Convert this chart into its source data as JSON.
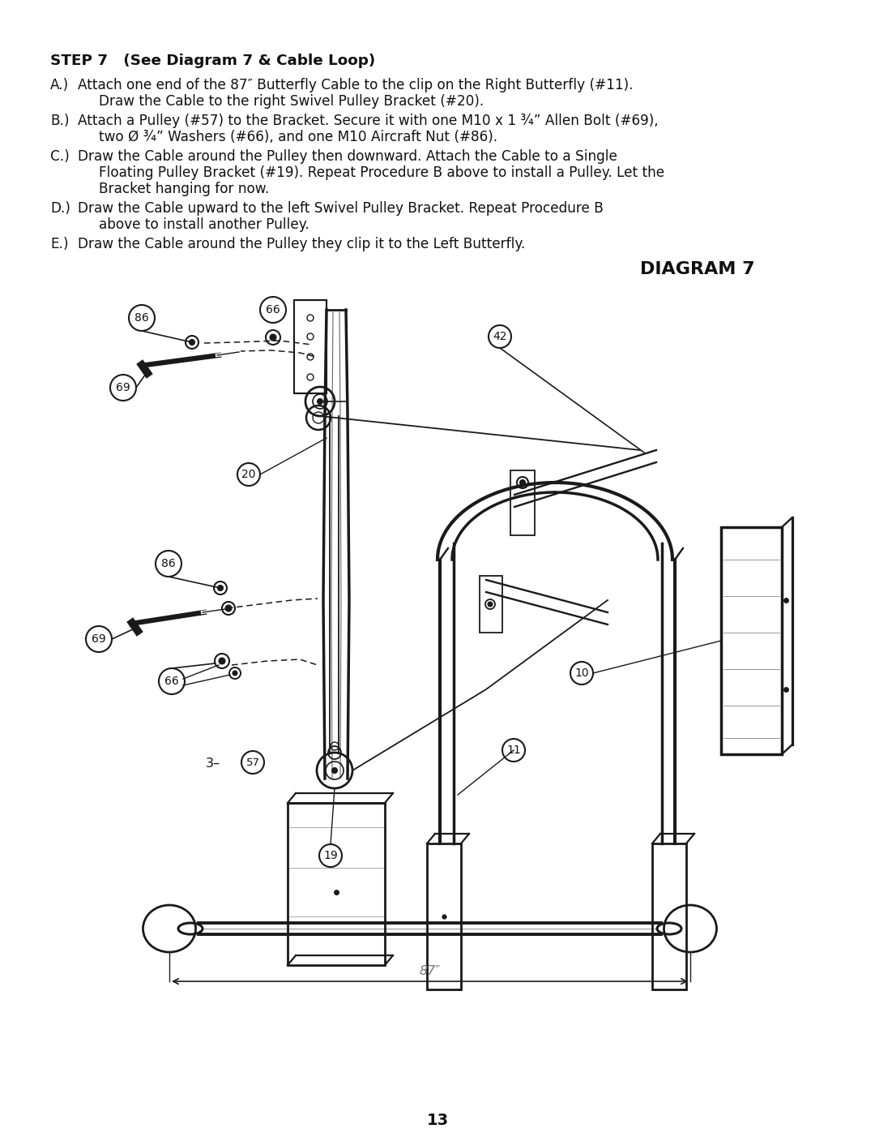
{
  "page_bg": "#ffffff",
  "title_bold": "STEP 7   (See Diagram 7 & Cable Loop)",
  "instr_A1": "Attach one end of the 87″ Butterfly Cable to the clip on the Right Butterfly (#11).",
  "instr_A2": "Draw the Cable to the right Swivel Pulley Bracket (#20).",
  "instr_B1": "Attach a Pulley (#57) to the Bracket. Secure it with one M10 x 1 ¾” Allen Bolt (#69),",
  "instr_B2": "two Ø ¾” Washers (#66), and one M10 Aircraft Nut (#86).",
  "instr_C1": "Draw the Cable around the Pulley then downward. Attach the Cable to a Single",
  "instr_C2": "Floating Pulley Bracket (#19). Repeat Procedure B above to install a Pulley. Let the",
  "instr_C3": "Bracket hanging for now.",
  "instr_D1": "Draw the Cable upward to the left Swivel Pulley Bracket. Repeat Procedure B",
  "instr_D2": "above to install another Pulley.",
  "instr_E1": "Draw the Cable around the Pulley they clip it to the Left Butterfly.",
  "diagram_title": "DIAGRAM 7",
  "page_number": "13",
  "cable_label": "87″",
  "text_color": "#111111",
  "draw_color": "#1a1a1a"
}
